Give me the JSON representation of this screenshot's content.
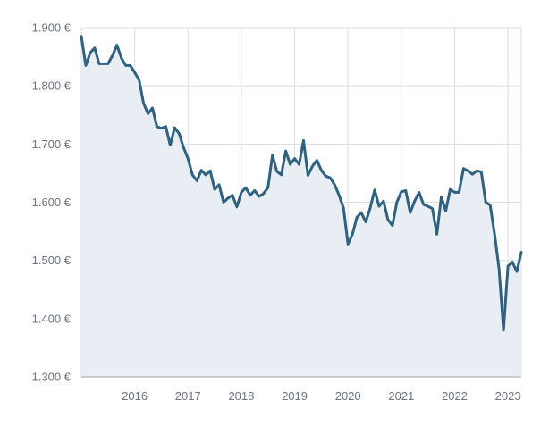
{
  "chart_data": {
    "type": "area",
    "title": "",
    "xlabel": "",
    "ylabel": "",
    "colors": {
      "line": "#2e6280",
      "fill": "#e8eef3",
      "grid": "#d9dde2",
      "tick_text": "#6b7280"
    },
    "grid": true,
    "legend": "none",
    "ylim": [
      1300,
      1900
    ],
    "xlim": [
      "2015-01",
      "2023-04"
    ],
    "y_ticks": [
      {
        "value": 1900,
        "label": "1.900 €"
      },
      {
        "value": 1800,
        "label": "1.800 €"
      },
      {
        "value": 1700,
        "label": "1.700 €"
      },
      {
        "value": 1600,
        "label": "1.600 €"
      },
      {
        "value": 1500,
        "label": "1.500 €"
      },
      {
        "value": 1400,
        "label": "1.400 €"
      },
      {
        "value": 1300,
        "label": "1.300 €"
      }
    ],
    "x_ticks": [
      {
        "value": "2016-01",
        "label": "2016"
      },
      {
        "value": "2017-01",
        "label": "2017"
      },
      {
        "value": "2018-01",
        "label": "2018"
      },
      {
        "value": "2019-01",
        "label": "2019"
      },
      {
        "value": "2020-01",
        "label": "2020"
      },
      {
        "value": "2021-01",
        "label": "2021"
      },
      {
        "value": "2022-01",
        "label": "2022"
      },
      {
        "value": "2023-01",
        "label": "2023"
      }
    ],
    "series": [
      {
        "x": [
          "2015-01",
          "2015-02",
          "2015-03",
          "2015-04",
          "2015-05",
          "2015-06",
          "2015-07",
          "2015-08",
          "2015-09",
          "2015-10",
          "2015-11",
          "2015-12",
          "2016-01",
          "2016-02",
          "2016-03",
          "2016-04",
          "2016-05",
          "2016-06",
          "2016-07",
          "2016-08",
          "2016-09",
          "2016-10",
          "2016-11",
          "2016-12",
          "2017-01",
          "2017-02",
          "2017-03",
          "2017-04",
          "2017-05",
          "2017-06",
          "2017-07",
          "2017-08",
          "2017-09",
          "2017-10",
          "2017-11",
          "2017-12",
          "2018-01",
          "2018-02",
          "2018-03",
          "2018-04",
          "2018-05",
          "2018-06",
          "2018-07",
          "2018-08",
          "2018-09",
          "2018-10",
          "2018-11",
          "2018-12",
          "2019-01",
          "2019-02",
          "2019-03",
          "2019-04",
          "2019-05",
          "2019-06",
          "2019-07",
          "2019-08",
          "2019-09",
          "2019-10",
          "2019-11",
          "2019-12",
          "2020-01",
          "2020-02",
          "2020-03",
          "2020-04",
          "2020-05",
          "2020-06",
          "2020-07",
          "2020-08",
          "2020-09",
          "2020-10",
          "2020-11",
          "2020-12",
          "2021-01",
          "2021-02",
          "2021-03",
          "2021-04",
          "2021-05",
          "2021-06",
          "2021-07",
          "2021-08",
          "2021-09",
          "2021-10",
          "2021-11",
          "2021-12",
          "2022-01",
          "2022-02",
          "2022-03",
          "2022-04",
          "2022-05",
          "2022-06",
          "2022-07",
          "2022-08",
          "2022-09",
          "2022-10",
          "2022-11",
          "2022-12",
          "2023-01",
          "2023-02",
          "2023-03",
          "2023-04"
        ],
        "values": [
          1885,
          1835,
          1857,
          1865,
          1838,
          1838,
          1838,
          1852,
          1870,
          1848,
          1835,
          1835,
          1823,
          1810,
          1770,
          1752,
          1762,
          1730,
          1727,
          1730,
          1698,
          1728,
          1718,
          1694,
          1675,
          1647,
          1637,
          1655,
          1647,
          1654,
          1622,
          1630,
          1600,
          1607,
          1612,
          1592,
          1617,
          1625,
          1612,
          1620,
          1610,
          1615,
          1625,
          1681,
          1653,
          1647,
          1688,
          1665,
          1675,
          1665,
          1706,
          1646,
          1662,
          1672,
          1655,
          1645,
          1642,
          1630,
          1612,
          1590,
          1528,
          1545,
          1574,
          1582,
          1566,
          1590,
          1621,
          1593,
          1602,
          1570,
          1560,
          1600,
          1618,
          1620,
          1582,
          1602,
          1617,
          1596,
          1593,
          1589,
          1545,
          1609,
          1585,
          1622,
          1617,
          1617,
          1658,
          1654,
          1648,
          1654,
          1652,
          1600,
          1595,
          1545,
          1485,
          1380,
          1490,
          1497,
          1481,
          1514
        ]
      }
    ]
  }
}
